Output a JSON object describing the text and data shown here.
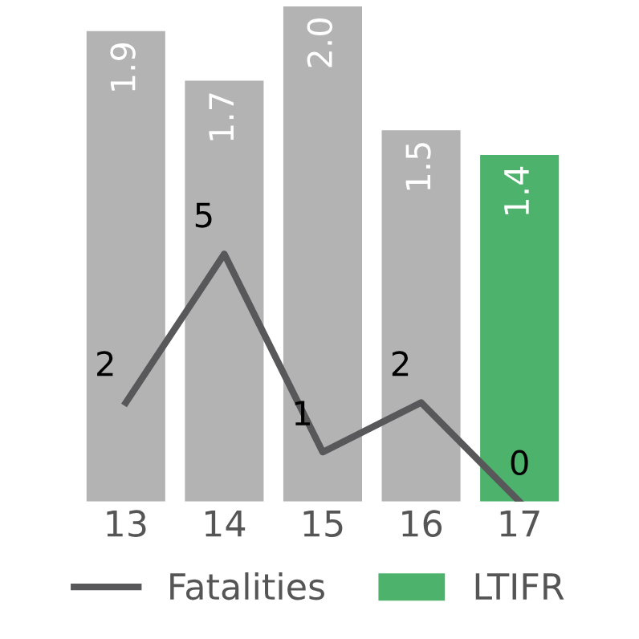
{
  "chart_data": {
    "type": "bar",
    "categories": [
      "13",
      "14",
      "15",
      "16",
      "17"
    ],
    "series": [
      {
        "name": "LTIFR",
        "value_labels": [
          "1.9",
          "1.7",
          "2.0",
          "1.5",
          "1.4"
        ],
        "colors": [
          "#b3b3b3",
          "#b3b3b3",
          "#b3b3b3",
          "#b3b3b3",
          "#4db26b"
        ],
        "color": "#4db26b",
        "values": [
          1.9,
          1.7,
          2.0,
          1.5,
          1.4
        ]
      },
      {
        "name": "Fatalities",
        "type": "line",
        "axis": "y2",
        "color": "#58585a",
        "values": [
          2,
          5,
          1,
          2,
          0
        ],
        "value_labels": [
          "2",
          "5",
          "1",
          "2",
          "0"
        ]
      }
    ],
    "ylim": [
      0,
      2.0
    ],
    "y2lim": [
      0,
      10
    ],
    "legend": "bottom",
    "grid": false,
    "tick_labels": "x",
    "marker": "none",
    "line_style": "solid"
  }
}
